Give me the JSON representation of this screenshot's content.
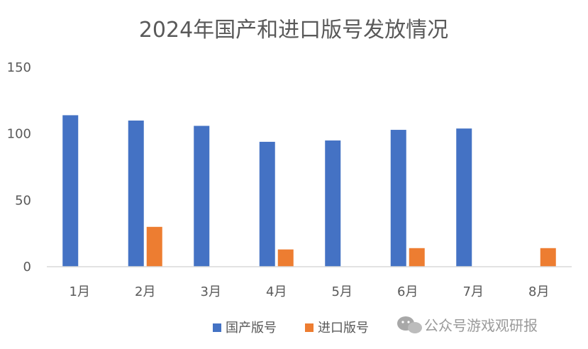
{
  "chart_data": {
    "type": "bar",
    "title": "2024年国产和进口版号发放情况",
    "categories": [
      "1月",
      "2月",
      "3月",
      "4月",
      "5月",
      "6月",
      "7月",
      "8月"
    ],
    "series": [
      {
        "name": "国产版号",
        "color": "#4472C4",
        "values": [
          114,
          110,
          106,
          94,
          95,
          103,
          104,
          null
        ]
      },
      {
        "name": "进口版号",
        "color": "#ED7D31",
        "values": [
          null,
          30,
          null,
          13,
          null,
          14,
          null,
          14
        ]
      }
    ],
    "ylim": [
      0,
      150
    ],
    "yticks": [
      0,
      50,
      100,
      150
    ],
    "grid": false,
    "legend": "bottom"
  },
  "watermark": {
    "text": "公众号游戏观研报",
    "icon": "wechat-icon"
  }
}
